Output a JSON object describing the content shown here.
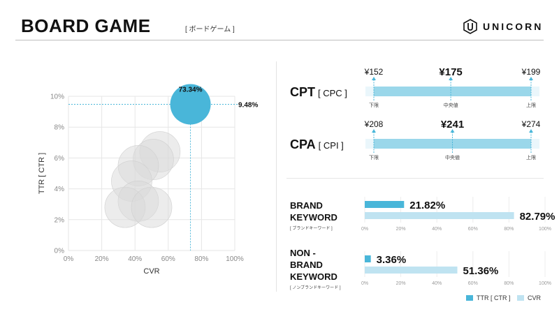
{
  "header": {
    "title": "BOARD GAME",
    "subtitle": "[ ボードゲーム ]",
    "logo_text": "UNICORN"
  },
  "colors": {
    "primary": "#49b6d9",
    "secondary": "#bfe3f1",
    "range_bar": "#9ad7ea",
    "bubble_grey": "#d9d9d9",
    "grid": "#e6e6e6"
  },
  "chart_data": [
    {
      "type": "scatter",
      "xlabel": "CVR",
      "ylabel": "TTR [ CTR ]",
      "xlim": [
        0,
        100
      ],
      "ylim": [
        0,
        10
      ],
      "x_ticks": [
        "0%",
        "20%",
        "40%",
        "60%",
        "80%",
        "100%"
      ],
      "y_ticks": [
        "0%",
        "2%",
        "4%",
        "6%",
        "8%",
        "10%"
      ],
      "grid": true,
      "highlight": {
        "x": 73.34,
        "y": 9.48,
        "x_label": "73.34%",
        "y_label": "9.48%"
      },
      "background_points": [
        {
          "x": 55,
          "y": 6.4
        },
        {
          "x": 51,
          "y": 5.9
        },
        {
          "x": 42,
          "y": 5.5
        },
        {
          "x": 38,
          "y": 4.5
        },
        {
          "x": 42,
          "y": 3.2
        },
        {
          "x": 34,
          "y": 2.8
        },
        {
          "x": 50,
          "y": 2.8
        }
      ]
    },
    {
      "type": "range",
      "name": "CPT",
      "sub": "[ CPC ]",
      "min": 152,
      "median": 175,
      "max": 199,
      "min_label": "¥152",
      "median_label": "¥175",
      "max_label": "¥199",
      "low_caption": "下限",
      "mid_caption": "中央値",
      "high_caption": "上限"
    },
    {
      "type": "range",
      "name": "CPA",
      "sub": "[ CPI ]",
      "min": 208,
      "median": 241,
      "max": 274,
      "min_label": "¥208",
      "median_label": "¥241",
      "max_label": "¥274",
      "low_caption": "下限",
      "mid_caption": "中央値",
      "high_caption": "上限"
    },
    {
      "type": "bar",
      "label_lines": [
        "BRAND",
        "KEYWORD"
      ],
      "sub": "[ ブランドキーワード ]",
      "series": [
        {
          "name": "TTR [ CTR ]",
          "value": 21.82,
          "label": "21.82%"
        },
        {
          "name": "CVR",
          "value": 82.79,
          "label": "82.79%"
        }
      ],
      "x_ticks": [
        "0%",
        "20%",
        "40%",
        "60%",
        "80%",
        "100%"
      ],
      "xlim": [
        0,
        100
      ]
    },
    {
      "type": "bar",
      "label_lines": [
        "NON -",
        "BRAND",
        "KEYWORD"
      ],
      "sub": "[ ノンブランドキーワード ]",
      "series": [
        {
          "name": "TTR [ CTR ]",
          "value": 3.36,
          "label": "3.36%"
        },
        {
          "name": "CVR",
          "value": 51.36,
          "label": "51.36%"
        }
      ],
      "x_ticks": [
        "0%",
        "20%",
        "40%",
        "60%",
        "80%",
        "100%"
      ],
      "xlim": [
        0,
        100
      ]
    }
  ],
  "legend": {
    "ttr": "TTR [ CTR ]",
    "cvr": "CVR"
  }
}
